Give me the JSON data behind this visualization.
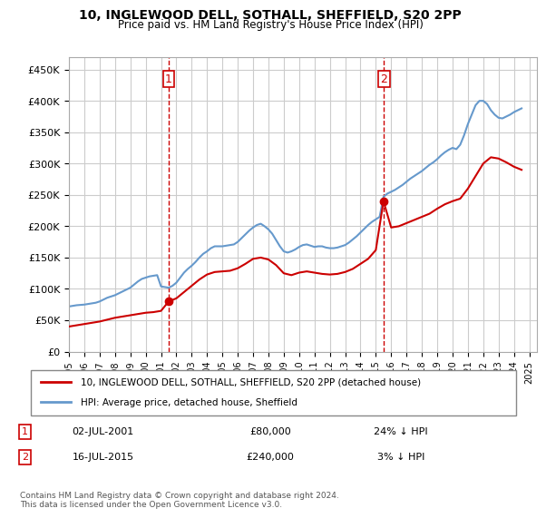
{
  "title": "10, INGLEWOOD DELL, SOTHALL, SHEFFIELD, S20 2PP",
  "subtitle": "Price paid vs. HM Land Registry's House Price Index (HPI)",
  "ylabel_ticks": [
    "£0",
    "£50K",
    "£100K",
    "£150K",
    "£200K",
    "£250K",
    "£300K",
    "£350K",
    "£400K",
    "£450K"
  ],
  "ytick_values": [
    0,
    50000,
    100000,
    150000,
    200000,
    250000,
    300000,
    350000,
    400000,
    450000
  ],
  "ylim": [
    0,
    470000
  ],
  "xlim_start": 1995.0,
  "xlim_end": 2025.5,
  "sale1": {
    "date": 2001.5,
    "price": 80000,
    "label": "1"
  },
  "sale2": {
    "date": 2015.54,
    "price": 240000,
    "label": "2"
  },
  "vline1": 2001.5,
  "vline2": 2015.54,
  "legend_line1": "10, INGLEWOOD DELL, SOTHALL, SHEFFIELD, S20 2PP (detached house)",
  "legend_line2": "HPI: Average price, detached house, Sheffield",
  "table_row1": [
    "1",
    "02-JUL-2001",
    "£80,000",
    "24% ↓ HPI"
  ],
  "table_row2": [
    "2",
    "16-JUL-2015",
    "£240,000",
    "3% ↓ HPI"
  ],
  "footnote": "Contains HM Land Registry data © Crown copyright and database right 2024.\nThis data is licensed under the Open Government Licence v3.0.",
  "sale_color": "#cc0000",
  "hpi_color": "#6699cc",
  "background_color": "#ffffff",
  "grid_color": "#cccccc",
  "hpi_data_x": [
    1995.0,
    1995.25,
    1995.5,
    1995.75,
    1996.0,
    1996.25,
    1996.5,
    1996.75,
    1997.0,
    1997.25,
    1997.5,
    1997.75,
    1998.0,
    1998.25,
    1998.5,
    1998.75,
    1999.0,
    1999.25,
    1999.5,
    1999.75,
    2000.0,
    2000.25,
    2000.5,
    2000.75,
    2001.0,
    2001.25,
    2001.5,
    2001.75,
    2002.0,
    2002.25,
    2002.5,
    2002.75,
    2003.0,
    2003.25,
    2003.5,
    2003.75,
    2004.0,
    2004.25,
    2004.5,
    2004.75,
    2005.0,
    2005.25,
    2005.5,
    2005.75,
    2006.0,
    2006.25,
    2006.5,
    2006.75,
    2007.0,
    2007.25,
    2007.5,
    2007.75,
    2008.0,
    2008.25,
    2008.5,
    2008.75,
    2009.0,
    2009.25,
    2009.5,
    2009.75,
    2010.0,
    2010.25,
    2010.5,
    2010.75,
    2011.0,
    2011.25,
    2011.5,
    2011.75,
    2012.0,
    2012.25,
    2012.5,
    2012.75,
    2013.0,
    2013.25,
    2013.5,
    2013.75,
    2014.0,
    2014.25,
    2014.5,
    2014.75,
    2015.0,
    2015.25,
    2015.5,
    2015.75,
    2016.0,
    2016.25,
    2016.5,
    2016.75,
    2017.0,
    2017.25,
    2017.5,
    2017.75,
    2018.0,
    2018.25,
    2018.5,
    2018.75,
    2019.0,
    2019.25,
    2019.5,
    2019.75,
    2020.0,
    2020.25,
    2020.5,
    2020.75,
    2021.0,
    2021.25,
    2021.5,
    2021.75,
    2022.0,
    2022.25,
    2022.5,
    2022.75,
    2023.0,
    2023.25,
    2023.5,
    2023.75,
    2024.0,
    2024.25,
    2024.5
  ],
  "hpi_data_y": [
    72000,
    73000,
    74000,
    74500,
    75000,
    76000,
    77000,
    78000,
    80000,
    83000,
    86000,
    88000,
    90000,
    93000,
    96000,
    99000,
    102000,
    107000,
    112000,
    116000,
    118000,
    120000,
    121000,
    122000,
    104000,
    103000,
    102000,
    105000,
    110000,
    118000,
    126000,
    132000,
    137000,
    143000,
    150000,
    156000,
    160000,
    165000,
    168000,
    168000,
    168000,
    169000,
    170000,
    171000,
    175000,
    181000,
    187000,
    193000,
    198000,
    202000,
    204000,
    200000,
    195000,
    188000,
    178000,
    168000,
    160000,
    158000,
    160000,
    163000,
    167000,
    170000,
    171000,
    169000,
    167000,
    168000,
    168000,
    166000,
    165000,
    165000,
    166000,
    168000,
    170000,
    174000,
    179000,
    184000,
    190000,
    196000,
    202000,
    207000,
    211000,
    215000,
    247000,
    252000,
    255000,
    258000,
    262000,
    266000,
    271000,
    276000,
    280000,
    284000,
    288000,
    293000,
    298000,
    302000,
    307000,
    313000,
    318000,
    322000,
    325000,
    323000,
    330000,
    345000,
    363000,
    378000,
    393000,
    400000,
    400000,
    395000,
    385000,
    378000,
    373000,
    372000,
    375000,
    378000,
    382000,
    385000,
    388000
  ],
  "price_data_x": [
    1995.0,
    1995.5,
    1996.0,
    1996.5,
    1997.0,
    1997.5,
    1998.0,
    1998.5,
    1999.0,
    1999.5,
    2000.0,
    2000.5,
    2001.0,
    2001.5,
    2002.0,
    2002.5,
    2003.0,
    2003.5,
    2004.0,
    2004.5,
    2005.0,
    2005.5,
    2006.0,
    2006.5,
    2007.0,
    2007.5,
    2008.0,
    2008.5,
    2009.0,
    2009.5,
    2010.0,
    2010.5,
    2011.0,
    2011.5,
    2012.0,
    2012.5,
    2013.0,
    2013.5,
    2014.0,
    2014.5,
    2015.0,
    2015.5,
    2016.0,
    2016.5,
    2017.0,
    2017.5,
    2018.0,
    2018.5,
    2019.0,
    2019.5,
    2020.0,
    2020.5,
    2021.0,
    2021.5,
    2022.0,
    2022.5,
    2023.0,
    2023.5,
    2024.0,
    2024.5
  ],
  "price_data_y": [
    40000,
    42000,
    44000,
    46000,
    48000,
    51000,
    54000,
    56000,
    58000,
    60000,
    62000,
    63000,
    65000,
    80000,
    85000,
    95000,
    105000,
    115000,
    123000,
    127000,
    128000,
    129000,
    133000,
    140000,
    148000,
    150000,
    147000,
    138000,
    125000,
    122000,
    126000,
    128000,
    126000,
    124000,
    123000,
    124000,
    127000,
    132000,
    140000,
    148000,
    162000,
    240000,
    198000,
    200000,
    205000,
    210000,
    215000,
    220000,
    228000,
    235000,
    240000,
    244000,
    260000,
    280000,
    300000,
    310000,
    308000,
    302000,
    295000,
    290000
  ]
}
